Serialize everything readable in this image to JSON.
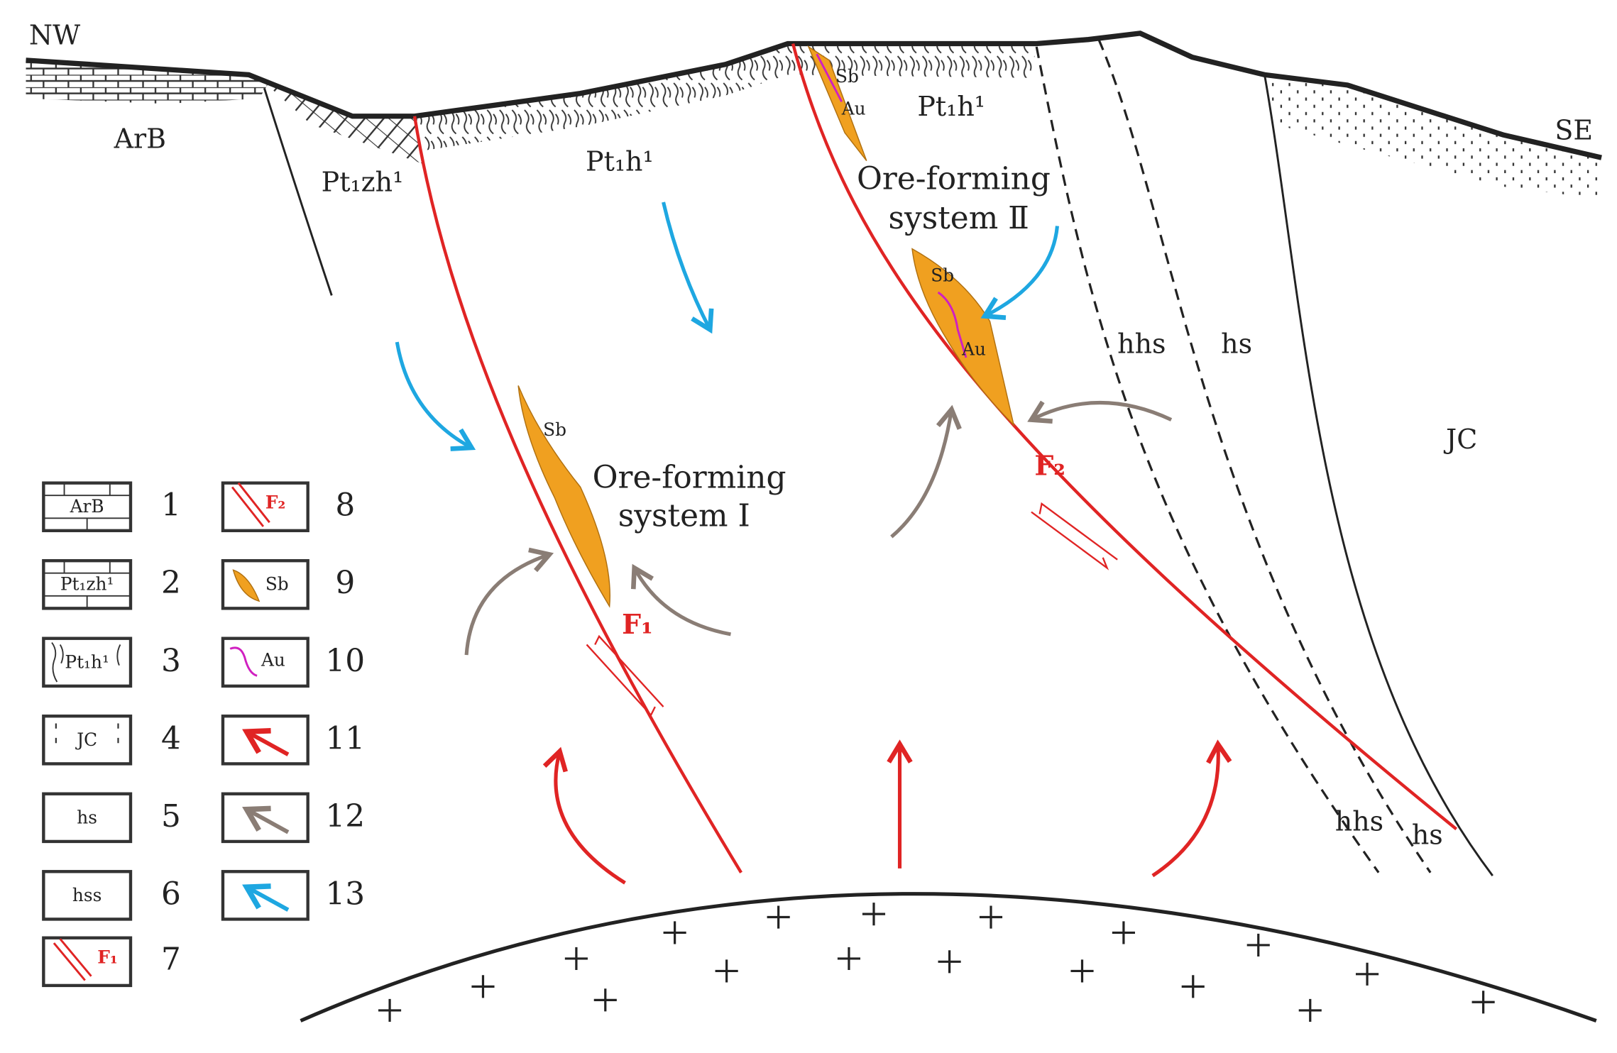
{
  "map_labels": [
    "NW",
    "SE",
    "ArB",
    "Pt₁zh¹",
    "Pt₁h¹",
    "Pt₁h¹",
    "hhs",
    "hs",
    "JC",
    "hhs",
    "hs"
  ],
  "ore_systems": [
    {
      "lines": [
        "Ore-forming",
        "system Ⅰ"
      ]
    },
    {
      "lines": [
        "Ore-forming",
        "system Ⅱ"
      ]
    }
  ],
  "ore_labels": [
    "Sb",
    "Sb",
    "Au",
    "Sb",
    "Au"
  ],
  "faults": [
    "F₁",
    "F₂"
  ],
  "legend": [
    {
      "number": "1",
      "label": "ArB"
    },
    {
      "number": "2",
      "label": "Pt₁zh¹"
    },
    {
      "number": "3",
      "label": "Pt₁h¹"
    },
    {
      "number": "4",
      "label": "JC"
    },
    {
      "number": "5",
      "label": "hs"
    },
    {
      "number": "6",
      "label": "hss"
    },
    {
      "number": "7",
      "label": "F₁"
    },
    {
      "number": "8",
      "label": "F₂"
    },
    {
      "number": "9",
      "label": "Sb"
    },
    {
      "number": "10",
      "label": "Au"
    },
    {
      "number": "11"
    },
    {
      "number": "12"
    },
    {
      "number": "13"
    }
  ]
}
